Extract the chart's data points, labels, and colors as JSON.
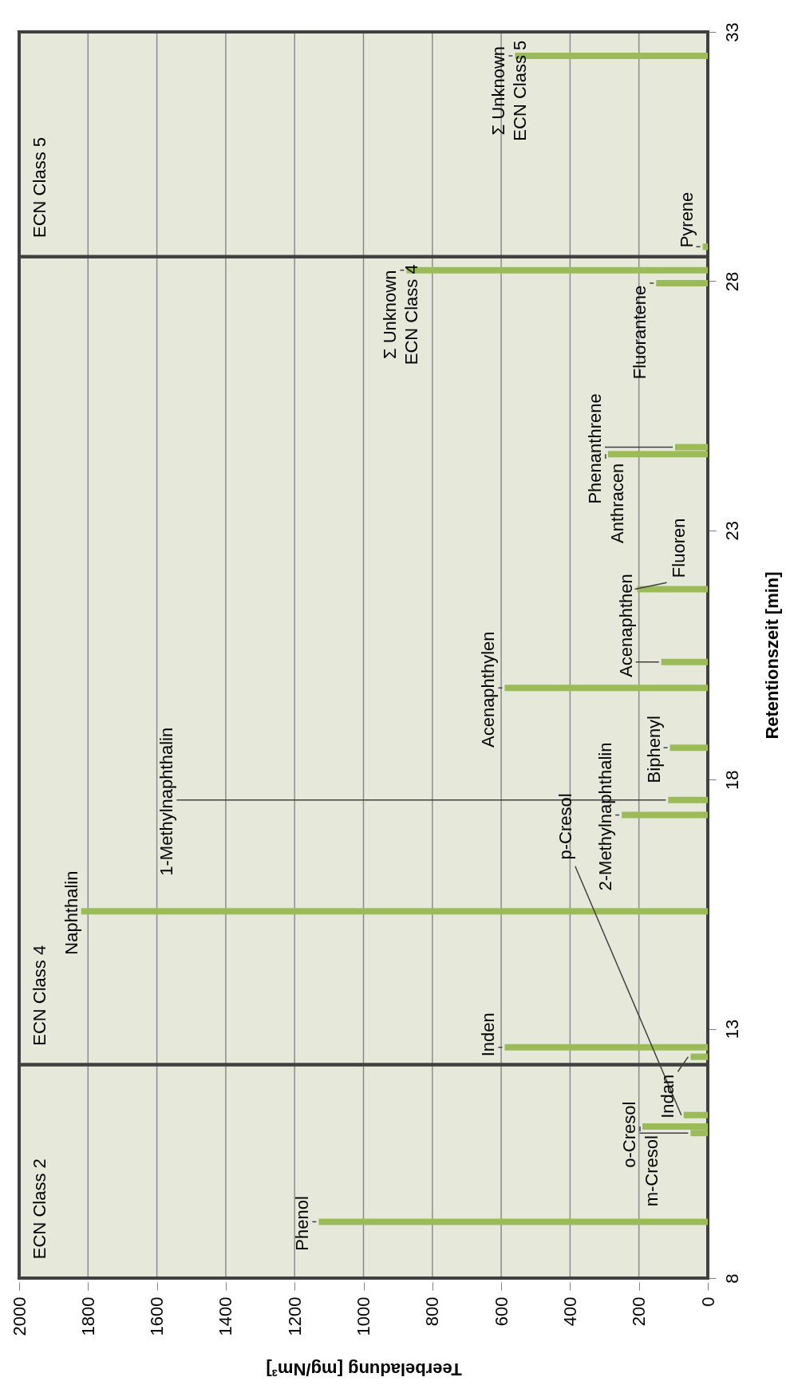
{
  "chart_data": {
    "type": "bar",
    "orientation": "horizontal",
    "xlabel": "Teerbeladung [mg/Nm³]",
    "ylabel": "Retentionszeit [min]",
    "xlim": [
      2000,
      0
    ],
    "xticks": [
      2000,
      1800,
      1600,
      1400,
      1200,
      1000,
      800,
      600,
      400,
      200,
      0
    ],
    "ylim": [
      8,
      33
    ],
    "yticks": [
      8,
      13,
      18,
      23,
      28,
      33
    ],
    "grid": "x",
    "series": [
      {
        "color": "#9bbb59",
        "x": [
          9.13,
          10.91,
          11.04,
          11.27,
          12.44,
          12.63,
          15.36,
          17.29,
          17.59,
          18.64,
          19.84,
          20.36,
          21.82,
          24.53,
          24.67,
          27.96,
          28.22,
          28.69,
          32.52
        ],
        "values": [
          1130,
          50,
          190,
          70,
          50,
          590,
          1820,
          250,
          115,
          110,
          590,
          135,
          205,
          290,
          95,
          150,
          875,
          15,
          560
        ]
      }
    ],
    "bands": [
      {
        "axis": "y",
        "from": 8,
        "to": 12.28,
        "label": "ECN Class 2",
        "color": "#e6e9da"
      },
      {
        "axis": "y",
        "from": 12.28,
        "to": 28.49,
        "label": "ECN Class 4",
        "color": "#e6e9da"
      },
      {
        "axis": "y",
        "from": 28.49,
        "to": 33,
        "label": "ECN Class 5",
        "color": "#e6e9da"
      }
    ],
    "annotations": [
      {
        "text": "Phenol",
        "x": 1130,
        "y": 9.13
      },
      {
        "text": "o-Cresol",
        "x": 50,
        "y": 10.91
      },
      {
        "text": "m-Cresol",
        "x": 190,
        "y": 11.04
      },
      {
        "text": "p-Cresol",
        "x": 70,
        "y": 11.27
      },
      {
        "text": "Indan",
        "x": 50,
        "y": 12.44
      },
      {
        "text": "Inden",
        "x": 590,
        "y": 12.63
      },
      {
        "text": "Naphthalin",
        "x": 1820,
        "y": 15.36
      },
      {
        "text": "2-Methylnaphthalin",
        "x": 250,
        "y": 17.29
      },
      {
        "text": "1-Methylnaphthalin",
        "x": 115,
        "y": 17.59
      },
      {
        "text": "Biphenyl",
        "x": 110,
        "y": 18.64
      },
      {
        "text": "Acenaphthylen",
        "x": 590,
        "y": 19.84
      },
      {
        "text": "Acenaphthen",
        "x": 135,
        "y": 20.36
      },
      {
        "text": "Fluoren",
        "x": 205,
        "y": 21.82
      },
      {
        "text": "Anthracen",
        "x": 290,
        "y": 24.53
      },
      {
        "text": "Phenanthrene",
        "x": 95,
        "y": 24.67
      },
      {
        "text": "Fluorantene",
        "x": 150,
        "y": 27.96
      },
      {
        "text": "Σ Unknown ECN Class 4",
        "x": 875,
        "y": 28.22
      },
      {
        "text": "Pyrene",
        "x": 15,
        "y": 28.69
      },
      {
        "text": "Σ Unknown ECN Class 5",
        "x": 560,
        "y": 32.52
      }
    ]
  }
}
